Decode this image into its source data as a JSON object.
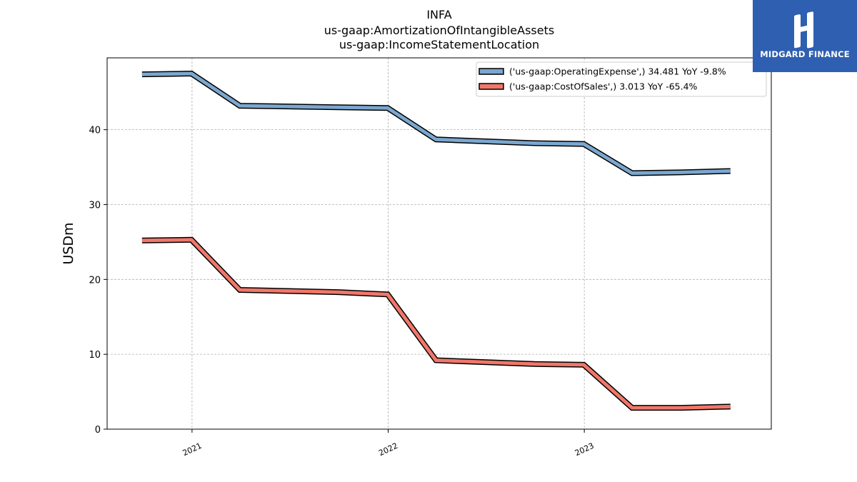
{
  "header": {
    "title": "INFA",
    "subtitle1": "us-gaap:AmortizationOfIntangibleAssets",
    "subtitle2": "us-gaap:IncomeStatementLocation"
  },
  "logo": {
    "text": "MIDGARD FINANCE",
    "bg_color": "#2f5fb0"
  },
  "chart_data": {
    "type": "line",
    "ylabel": "USDm",
    "ylim": [
      0,
      49.6
    ],
    "yticks": [
      0,
      10,
      20,
      30,
      40
    ],
    "xticks": [
      "2021",
      "2022",
      "2023"
    ],
    "xlim": [
      "2020-07-27",
      "2023-12-15"
    ],
    "grid": true,
    "legend_position": "top-right",
    "x": [
      "2020-09-30",
      "2020-12-31",
      "2021-03-31",
      "2021-06-30",
      "2021-09-30",
      "2021-12-31",
      "2022-03-31",
      "2022-06-30",
      "2022-09-30",
      "2022-12-31",
      "2023-03-31",
      "2023-06-30",
      "2023-09-30"
    ],
    "series": [
      {
        "name": "('us-gaap:OperatingExpense',) 34.481 YoY -9.8%",
        "color": "#7ba7cf",
        "values": [
          47.4,
          47.5,
          43.2,
          null,
          43.0,
          42.9,
          38.7,
          null,
          38.2,
          38.1,
          34.2,
          34.3,
          34.481
        ]
      },
      {
        "name": "('us-gaap:CostOfSales',) 3.013 YoY -65.4%",
        "color": "#f0776a",
        "values": [
          25.2,
          25.3,
          18.6,
          null,
          18.3,
          18.0,
          9.2,
          null,
          8.7,
          8.6,
          2.85,
          2.85,
          3.013
        ]
      }
    ]
  }
}
